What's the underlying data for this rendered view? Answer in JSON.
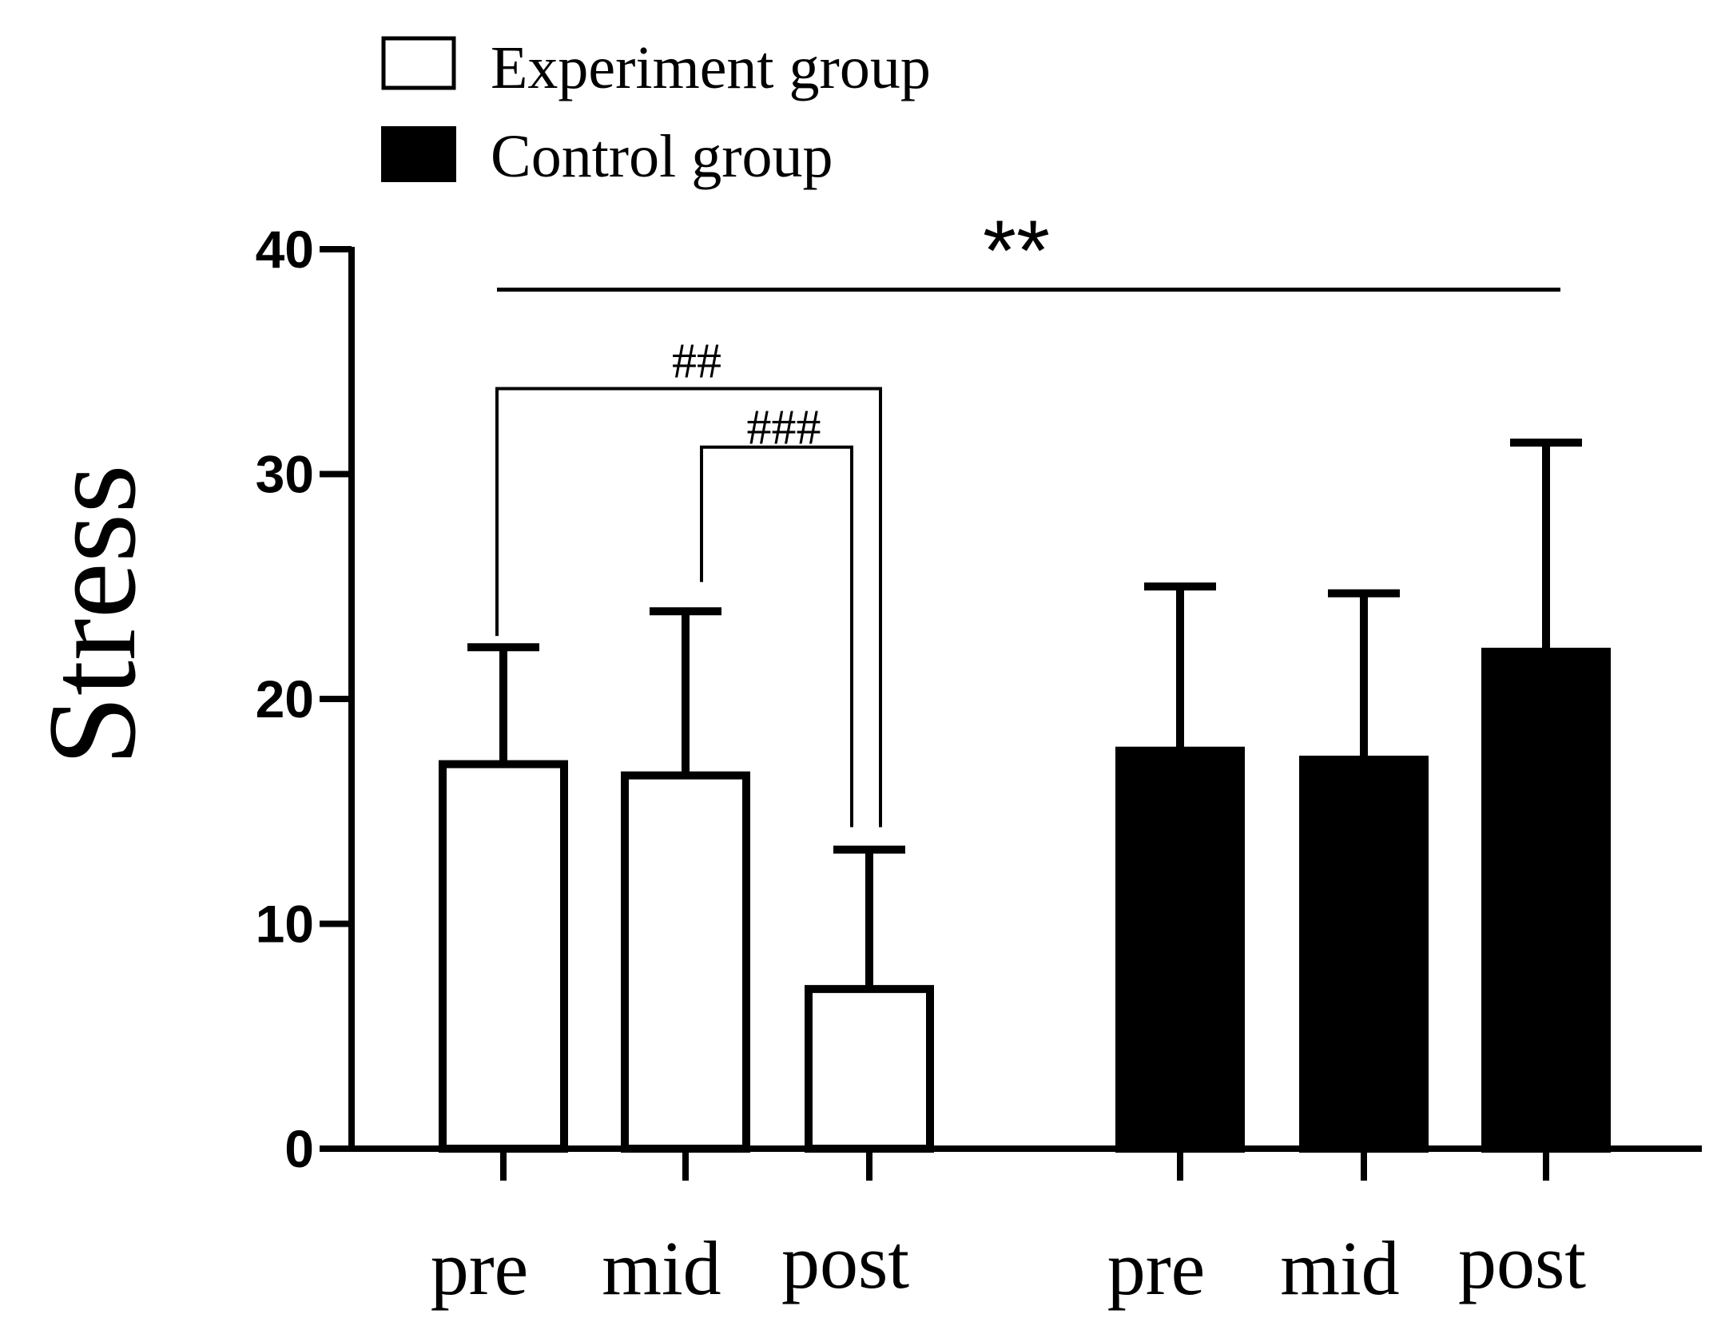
{
  "chart_data": {
    "type": "bar",
    "title": "",
    "xlabel": "",
    "ylabel": "Stress",
    "ylim": [
      0,
      40
    ],
    "yticks": [
      "0",
      "10",
      "20",
      "30",
      "40"
    ],
    "grid": false,
    "legend_position": "top-left",
    "series": [
      {
        "name": "Experiment group",
        "fill": "#ffffff",
        "categories": [
          "pre",
          "mid",
          "post"
        ],
        "values": [
          17.1,
          16.6,
          7.1
        ],
        "errors": [
          5.2,
          7.3,
          6.2
        ]
      },
      {
        "name": "Control group",
        "fill": "#000000",
        "categories": [
          "pre",
          "mid",
          "post"
        ],
        "values": [
          17.7,
          17.3,
          22.1
        ],
        "errors": [
          7.3,
          7.4,
          9.3
        ]
      }
    ],
    "annotations": [
      {
        "label": "**",
        "from": "Experiment group pre",
        "to": "Control group post",
        "y": 38.2
      },
      {
        "label": "##",
        "from": "Experiment group pre",
        "to": "Experiment group post",
        "y": 33.8
      },
      {
        "label": "###",
        "from": "Experiment group mid",
        "to": "Experiment group post",
        "y": 31.2
      }
    ]
  }
}
